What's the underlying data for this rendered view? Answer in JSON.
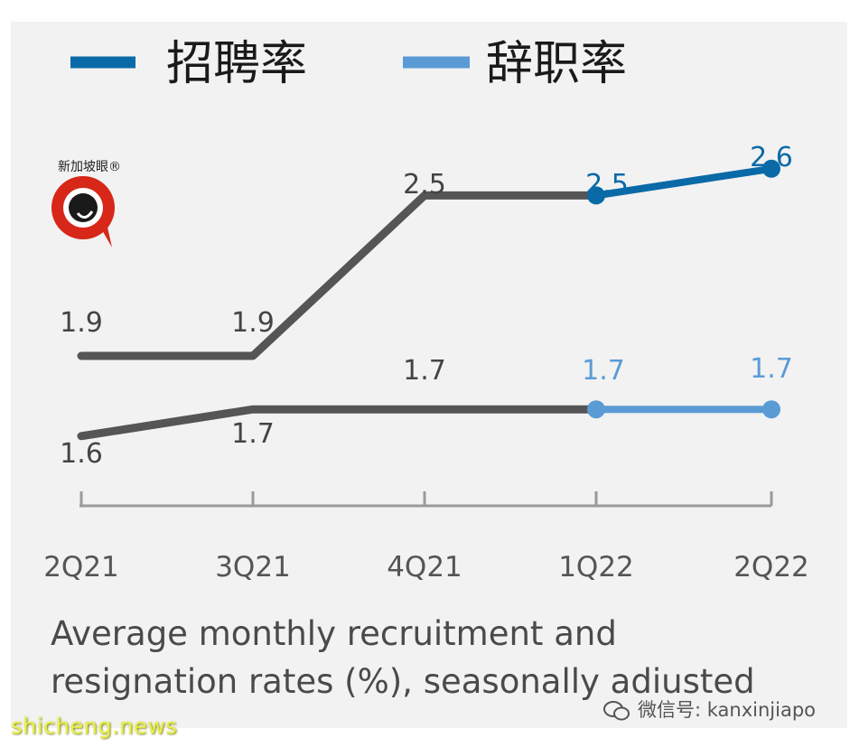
{
  "chart_data": {
    "type": "line",
    "categories": [
      "2Q21",
      "3Q21",
      "4Q21",
      "1Q22",
      "2Q22"
    ],
    "series": [
      {
        "name": "招聘率",
        "values": [
          1.9,
          1.9,
          2.5,
          2.5,
          2.6
        ],
        "history_color": "#555555",
        "highlight_color": "#0a6aa8",
        "labels": [
          "1.9",
          "1.9",
          "2.5",
          "2.5",
          "2.6"
        ]
      },
      {
        "name": "辞职率",
        "values": [
          1.6,
          1.7,
          1.7,
          1.7,
          1.7
        ],
        "history_color": "#555555",
        "highlight_color": "#5b9bd5",
        "labels": [
          "1.6",
          "1.7",
          "1.7",
          "1.7",
          "1.7"
        ]
      }
    ],
    "highlight_from_index": 3,
    "caption_line1": "Average monthly recruitment and",
    "caption_line2": "resignation rates (%), seasonally adiusted",
    "grid": false
  },
  "logo": {
    "text": "新加坡眼®",
    "color": "#d62718"
  },
  "watermarks": {
    "left": "shicheng.news",
    "right": "微信号: kanxinjiapo"
  }
}
